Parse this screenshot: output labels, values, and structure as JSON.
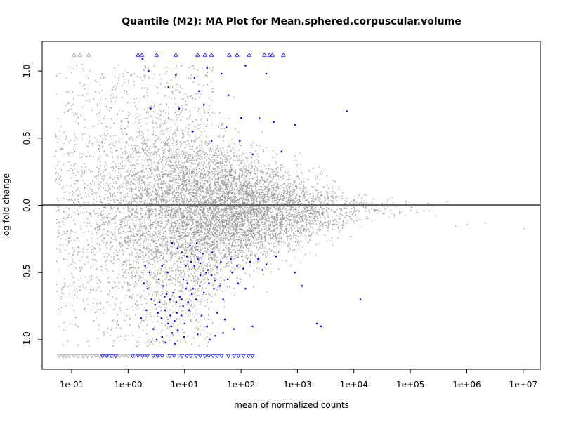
{
  "chart_data": {
    "type": "scatter",
    "title": "Quantile (M2): MA Plot for Mean.sphered.corpuscular.volume",
    "xlabel": "mean of normalized counts",
    "ylabel": "log fold change",
    "x_scale": "log10",
    "xlim": [
      0.03,
      20000000
    ],
    "ylim": [
      -1.22,
      1.22
    ],
    "x_ticks": [
      0.1,
      1,
      10,
      100,
      1000,
      10000,
      100000,
      1000000,
      10000000
    ],
    "x_tick_labels": [
      "1e-01",
      "1e+00",
      "1e+01",
      "1e+02",
      "1e+03",
      "1e+04",
      "1e+05",
      "1e+06",
      "1e+07"
    ],
    "y_ticks": [
      -1.0,
      -0.5,
      0.0,
      0.5,
      1.0
    ],
    "y_tick_labels": [
      "-1.0",
      "-0.5",
      "0.0",
      "0.5",
      "1.0"
    ],
    "reference_line": 0,
    "grid": false,
    "legend": "none",
    "colors": {
      "not_significant": "#999999",
      "significant": "#0000ff",
      "reference_line": "#666666"
    },
    "series": [
      {
        "marker": "dot",
        "color_key": "significant",
        "points": [
          [
            1.8,
            1.09
          ],
          [
            2.3,
            1.0
          ],
          [
            7.0,
            0.97
          ],
          [
            15,
            0.95
          ],
          [
            25,
            1.02
          ],
          [
            45,
            0.98
          ],
          [
            120,
            1.04
          ],
          [
            280,
            0.98
          ],
          [
            5.2,
            0.88
          ],
          [
            18,
            0.85
          ],
          [
            60,
            0.82
          ],
          [
            8,
            0.72
          ],
          [
            22,
            0.75
          ],
          [
            100,
            0.65
          ],
          [
            380,
            0.62
          ],
          [
            2.5,
            0.72
          ],
          [
            900,
            0.6
          ],
          [
            7500,
            0.7
          ],
          [
            30,
            0.48
          ],
          [
            95,
            0.48
          ],
          [
            160,
            0.38
          ],
          [
            520,
            0.4
          ],
          [
            55,
            0.58
          ],
          [
            210,
            0.65
          ],
          [
            14,
            0.55
          ],
          [
            6,
            -0.28
          ],
          [
            7.5,
            -0.32
          ],
          [
            9,
            -0.35
          ],
          [
            11,
            -0.38
          ],
          [
            13,
            -0.42
          ],
          [
            15,
            -0.45
          ],
          [
            17,
            -0.4
          ],
          [
            19,
            -0.43
          ],
          [
            21,
            -0.36
          ],
          [
            24,
            -0.5
          ],
          [
            26,
            -0.48
          ],
          [
            30,
            -0.52
          ],
          [
            34,
            -0.56
          ],
          [
            38,
            -0.46
          ],
          [
            42,
            -0.6
          ],
          [
            3.5,
            -0.55
          ],
          [
            4.2,
            -0.6
          ],
          [
            4.8,
            -0.66
          ],
          [
            5.5,
            -0.7
          ],
          [
            6.3,
            -0.65
          ],
          [
            7.1,
            -0.72
          ],
          [
            8.2,
            -0.68
          ],
          [
            9.4,
            -0.75
          ],
          [
            10.6,
            -0.62
          ],
          [
            12,
            -0.78
          ],
          [
            2.2,
            -0.62
          ],
          [
            2.6,
            -0.7
          ],
          [
            3.0,
            -0.74
          ],
          [
            3.4,
            -0.8
          ],
          [
            3.9,
            -0.84
          ],
          [
            4.5,
            -0.78
          ],
          [
            5.1,
            -0.88
          ],
          [
            5.8,
            -0.9
          ],
          [
            6.6,
            -0.86
          ],
          [
            7.6,
            -0.93
          ],
          [
            8.7,
            -0.82
          ],
          [
            10,
            -0.88
          ],
          [
            11.5,
            -0.72
          ],
          [
            13.5,
            -0.66
          ],
          [
            16,
            -0.7
          ],
          [
            18.5,
            -0.6
          ],
          [
            22,
            -0.65
          ],
          [
            27,
            -0.58
          ],
          [
            33,
            -0.62
          ],
          [
            48,
            -0.7
          ],
          [
            58,
            -0.55
          ],
          [
            70,
            -0.5
          ],
          [
            85,
            -0.45
          ],
          [
            110,
            -0.47
          ],
          [
            145,
            -0.42
          ],
          [
            200,
            -0.4
          ],
          [
            280,
            -0.44
          ],
          [
            420,
            -0.38
          ],
          [
            900,
            -0.5
          ],
          [
            1200,
            -0.6
          ],
          [
            13000,
            -0.7
          ],
          [
            2200,
            -0.88
          ],
          [
            2600,
            -0.9
          ],
          [
            160,
            -0.9
          ],
          [
            75,
            -0.92
          ],
          [
            48,
            -0.95
          ],
          [
            35,
            -0.97
          ],
          [
            28,
            -1.0
          ],
          [
            4.0,
            -0.98
          ],
          [
            4.6,
            -1.02
          ],
          [
            3.2,
            -1.0
          ],
          [
            6.8,
            -1.03
          ],
          [
            2.8,
            -0.92
          ],
          [
            20,
            -0.82
          ],
          [
            38,
            -0.8
          ],
          [
            25,
            -0.9
          ],
          [
            52,
            -0.85
          ],
          [
            17,
            -0.96
          ],
          [
            9.8,
            -0.98
          ],
          [
            6.0,
            -0.95
          ],
          [
            2.4,
            -0.5
          ],
          [
            2.0,
            -0.45
          ],
          [
            12.5,
            -0.3
          ],
          [
            16.5,
            -0.28
          ],
          [
            9.5,
            -0.55
          ],
          [
            11.2,
            -0.58
          ],
          [
            14.2,
            -0.62
          ],
          [
            4.0,
            -0.45
          ],
          [
            5.0,
            -0.5
          ],
          [
            31,
            -0.35
          ],
          [
            66,
            -0.4
          ],
          [
            44,
            -0.42
          ],
          [
            88,
            -0.58
          ],
          [
            120,
            -0.62
          ],
          [
            240,
            -0.48
          ],
          [
            3.6,
            -0.72
          ],
          [
            4.4,
            -0.68
          ],
          [
            5.6,
            -0.82
          ],
          [
            7.3,
            -0.8
          ],
          [
            8.9,
            -0.7
          ],
          [
            1.9,
            -0.58
          ],
          [
            2.1,
            -0.78
          ],
          [
            1.7,
            -0.84
          ],
          [
            10.5,
            -0.45
          ],
          [
            19,
            -0.52
          ]
        ]
      },
      {
        "marker": "triangle-up",
        "color_key": "not_significant",
        "y": 1.12,
        "x": [
          0.11,
          0.14,
          0.2
        ]
      },
      {
        "marker": "triangle-up",
        "color_key": "significant",
        "y": 1.12,
        "x": [
          1.5,
          1.75,
          3.2,
          7,
          17,
          23,
          30,
          62,
          85,
          140,
          260,
          320,
          360,
          560
        ]
      },
      {
        "marker": "triangle-down",
        "color_key": "not_significant",
        "y": -1.12,
        "x": [
          0.06,
          0.07,
          0.08,
          0.09,
          0.11,
          0.13,
          0.16,
          0.19,
          0.23,
          0.27,
          0.31,
          0.36,
          0.41,
          0.47,
          0.54,
          0.62,
          0.72,
          0.85,
          1.0,
          1.3,
          2.0,
          3.5,
          5.0,
          8.0
        ]
      },
      {
        "marker": "triangle-down",
        "color_key": "significant",
        "y": -1.12,
        "x": [
          0.35,
          0.42,
          0.5,
          0.6,
          1.2,
          1.5,
          1.8,
          2.2,
          2.8,
          3.3,
          4.0,
          5.5,
          6.5,
          9.0,
          11,
          13,
          16,
          19,
          23,
          27,
          32,
          38,
          45,
          60,
          75,
          90,
          110,
          135,
          160
        ]
      }
    ]
  }
}
